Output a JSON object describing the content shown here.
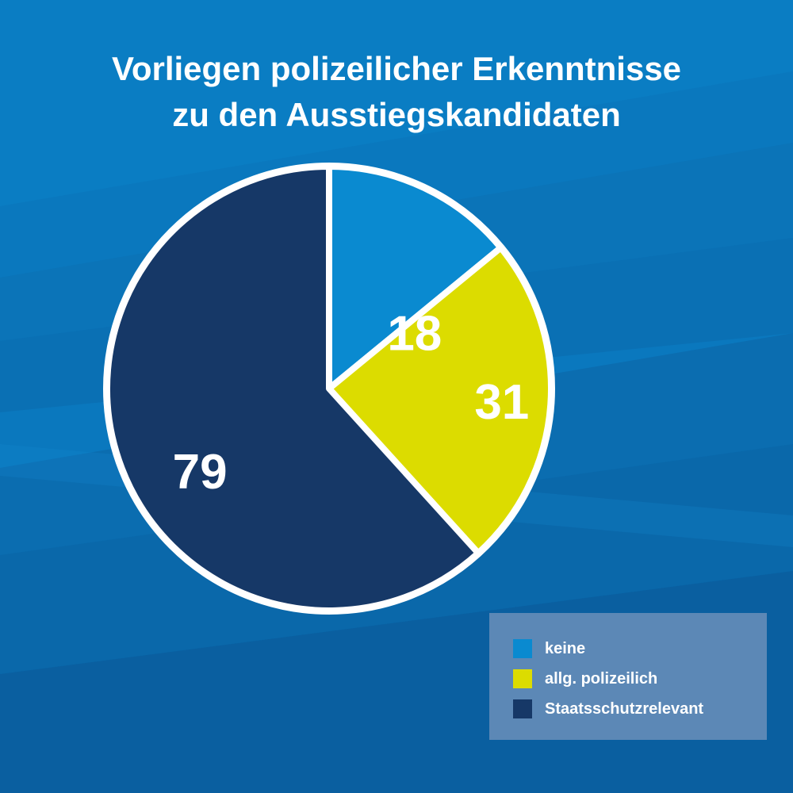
{
  "title": {
    "line1": "Vorliegen polizeilicher Erkenntnisse",
    "line2": "zu den Ausstiegskandidaten"
  },
  "colors": {
    "background": "#0a77bd",
    "outline": "#ffffff",
    "label_text": "#ffffff"
  },
  "chart_data": {
    "type": "pie",
    "title": "Vorliegen polizeilicher Erkenntnisse zu den Ausstiegskandidaten",
    "start_angle_deg": 0,
    "direction": "clockwise",
    "legend_position": "bottom-right",
    "slices": [
      {
        "label": "keine",
        "value": 18,
        "color": "#0a8ad0"
      },
      {
        "label": "allg. polizeilich",
        "value": 31,
        "color": "#dcdc00"
      },
      {
        "label": "Staatsschutzrelevant",
        "value": 79,
        "color": "#163867"
      }
    ]
  },
  "legend": {
    "items": [
      {
        "label": "keine",
        "color": "#0a8ad0"
      },
      {
        "label": "allg. polizeilich",
        "color": "#dcdc00"
      },
      {
        "label": "Staatsschutzrelevant",
        "color": "#163867"
      }
    ]
  }
}
